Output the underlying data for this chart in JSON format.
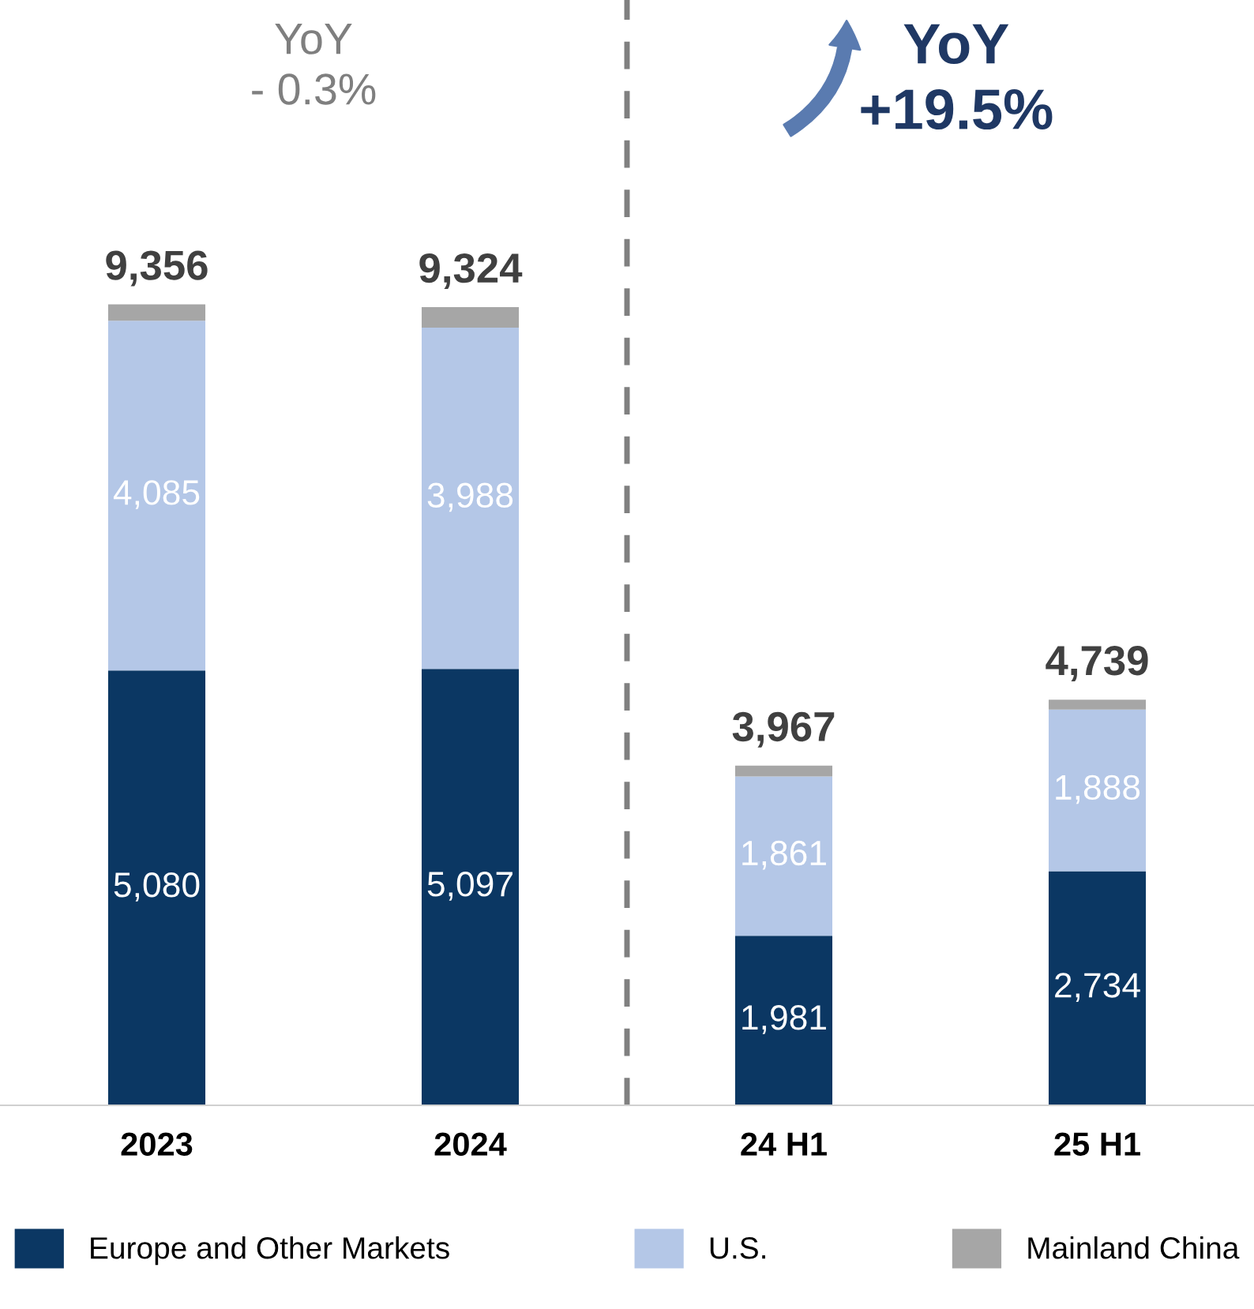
{
  "chart_data": {
    "type": "bar",
    "stacked": true,
    "categories": [
      "2023",
      "2024",
      "24 H1",
      "25 H1"
    ],
    "series": [
      {
        "name": "Europe and Other Markets",
        "color": "#0b3763",
        "values": [
          5080,
          5097,
          1981,
          2734
        ],
        "value_labels": [
          "5,080",
          "5,097",
          "1,981",
          "2,734"
        ]
      },
      {
        "name": "U.S.",
        "color": "#b4c7e7",
        "values": [
          4085,
          3988,
          1861,
          1888
        ],
        "value_labels": [
          "4,085",
          "3,988",
          "1,861",
          "1,888"
        ]
      },
      {
        "name": "Mainland China",
        "color": "#a6a6a6",
        "values": [
          191,
          239,
          125,
          117
        ]
      }
    ],
    "totals": [
      "9,356",
      "9,324",
      "3,967",
      "4,739"
    ],
    "annotations": [
      "YoY\n- 0.3%",
      "YoY\n+19.5%"
    ],
    "legend": "bottom",
    "grid": false
  }
}
